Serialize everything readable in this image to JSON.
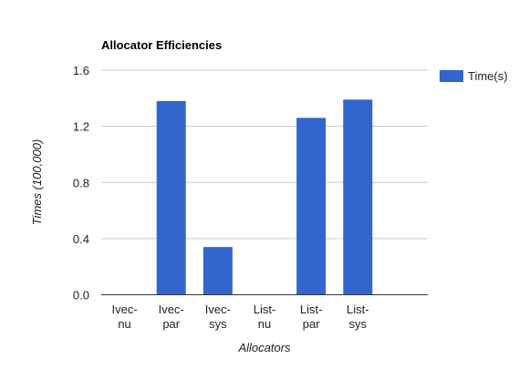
{
  "chart_data": {
    "type": "bar",
    "title": "Allocator Efficiencies",
    "xlabel": "Allocators",
    "ylabel": "Times (100,000)",
    "categories": [
      [
        "Ivec-",
        "nu"
      ],
      [
        "Ivec-",
        "par"
      ],
      [
        "Ivec-",
        "sys"
      ],
      [
        "List-",
        "nu"
      ],
      [
        "List-",
        "par"
      ],
      [
        "List-",
        "sys"
      ]
    ],
    "series": [
      {
        "name": "Time(s)",
        "color": "#3366cc",
        "values": [
          0,
          1.38,
          0.34,
          0,
          1.26,
          1.39
        ]
      }
    ],
    "ylim": [
      0,
      1.6
    ],
    "yticks": [
      "0.0",
      "0.4",
      "0.8",
      "1.2",
      "1.6"
    ],
    "grid": true,
    "legend_position": "right",
    "colors": {
      "grid": "#cccccc",
      "axis": "#333333",
      "text": "#222222"
    }
  }
}
